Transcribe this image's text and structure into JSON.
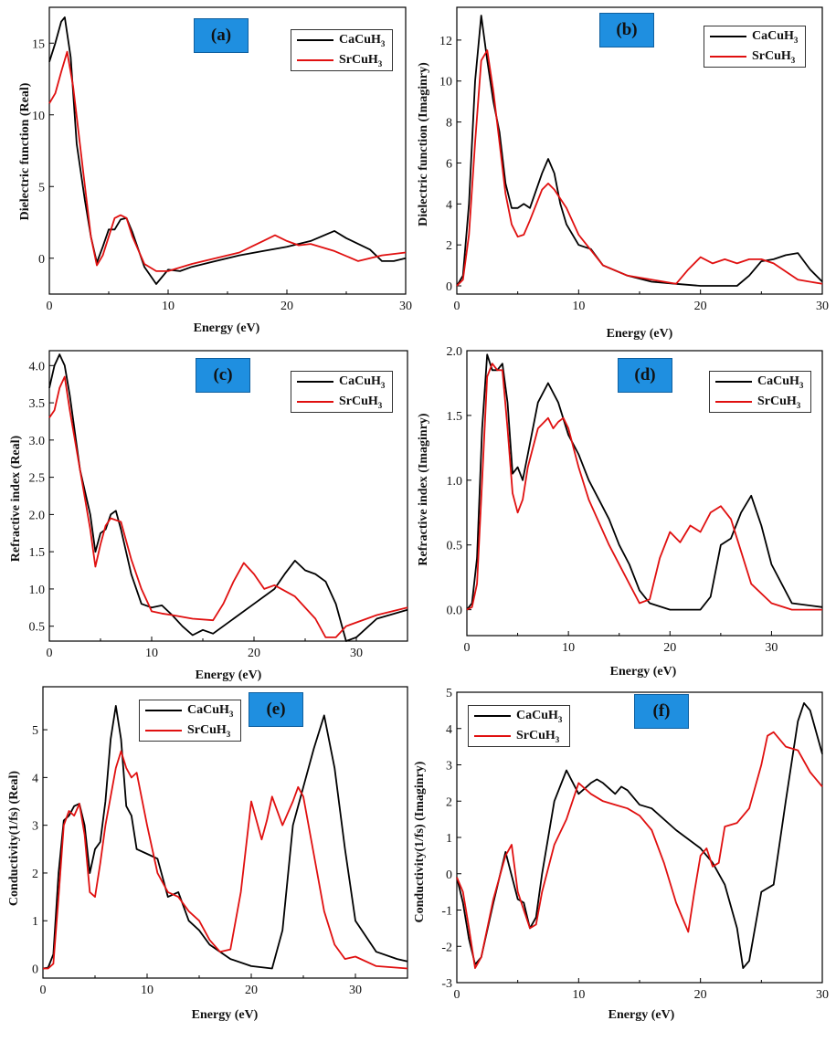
{
  "colors": {
    "CaCuH3": "#000000",
    "SrCuH3": "#e01010",
    "label_bg": "#1f8fe0"
  },
  "legend": {
    "ca": {
      "base": "CaCuH",
      "sub": "3"
    },
    "sr": {
      "base": "SrCuH",
      "sub": "3"
    }
  },
  "chart_data": [
    {
      "id": "a",
      "type": "line",
      "panel_label": "(a)",
      "title": "",
      "xlabel": "Energy (eV)",
      "ylabel": "Dielectric function (Real)",
      "xlim": [
        0,
        30
      ],
      "ylim": [
        -2.5,
        17.5
      ],
      "xticks": [
        0,
        10,
        20,
        30
      ],
      "yticks": [
        0,
        5,
        10,
        15
      ],
      "series": [
        {
          "name": "CaCuH3",
          "x": [
            0,
            0.5,
            1,
            1.3,
            1.8,
            2.3,
            3,
            3.5,
            4,
            4.5,
            5,
            5.5,
            6,
            6.5,
            7,
            8,
            9,
            10,
            11,
            12,
            14,
            16,
            18,
            20,
            22,
            24,
            25,
            27,
            28,
            29,
            30
          ],
          "y": [
            13.7,
            15,
            16.5,
            16.8,
            14,
            8,
            4,
            1.5,
            -0.3,
            0.8,
            2,
            2,
            2.7,
            2.8,
            1.8,
            -0.6,
            -1.8,
            -0.8,
            -0.9,
            -0.6,
            -0.2,
            0.2,
            0.5,
            0.8,
            1.2,
            1.9,
            1.4,
            0.6,
            -0.2,
            -0.2,
            0
          ]
        },
        {
          "name": "SrCuH3",
          "x": [
            0,
            0.5,
            1,
            1.5,
            2,
            3,
            3.5,
            4,
            4.5,
            5,
            5.5,
            6,
            6.5,
            7,
            8,
            9,
            10,
            12,
            14,
            16,
            17,
            18,
            19,
            20,
            21,
            22,
            24,
            26,
            28,
            30
          ],
          "y": [
            10.8,
            11.5,
            13,
            14.4,
            12,
            5,
            1.5,
            -0.5,
            0.2,
            1.5,
            2.8,
            3,
            2.8,
            1.5,
            -0.4,
            -0.9,
            -0.9,
            -0.4,
            0,
            0.4,
            0.8,
            1.2,
            1.6,
            1.2,
            0.9,
            1,
            0.5,
            -0.2,
            0.2,
            0.4
          ]
        }
      ]
    },
    {
      "id": "b",
      "type": "line",
      "panel_label": "(b)",
      "title": "",
      "xlabel": "Energy (eV)",
      "ylabel": "Dielectric function (Imaginry)",
      "xlim": [
        0,
        30
      ],
      "ylim": [
        -0.4,
        13.6
      ],
      "xticks": [
        0,
        10,
        20,
        30
      ],
      "yticks": [
        0,
        2,
        4,
        6,
        8,
        10,
        12
      ],
      "series": [
        {
          "name": "CaCuH3",
          "x": [
            0,
            0.5,
            1,
            1.5,
            2,
            2.5,
            3,
            3.5,
            4,
            4.5,
            5,
            5.5,
            6,
            7,
            7.5,
            8,
            8.5,
            9,
            10,
            11,
            12,
            14,
            16,
            18,
            20,
            22,
            23,
            24,
            25,
            26,
            27,
            28,
            29,
            30
          ],
          "y": [
            0,
            0.5,
            4,
            10,
            13.2,
            11,
            9,
            7.5,
            5,
            3.8,
            3.8,
            4,
            3.8,
            5.5,
            6.2,
            5.5,
            4,
            3,
            2,
            1.8,
            1,
            0.5,
            0.2,
            0.1,
            0,
            0,
            0,
            0.5,
            1.2,
            1.3,
            1.5,
            1.6,
            0.8,
            0.2
          ]
        },
        {
          "name": "SrCuH3",
          "x": [
            0,
            0.5,
            1,
            1.5,
            2,
            2.5,
            3,
            3.5,
            4,
            4.5,
            5,
            5.5,
            6,
            7,
            7.5,
            8,
            9,
            10,
            12,
            14,
            16,
            18,
            19,
            20,
            21,
            22,
            23,
            24,
            25,
            26,
            28,
            30
          ],
          "y": [
            0,
            0.3,
            2.5,
            7,
            11,
            11.5,
            9.5,
            7,
            4.5,
            3,
            2.4,
            2.5,
            3.2,
            4.7,
            5,
            4.7,
            3.8,
            2.5,
            1,
            0.5,
            0.3,
            0.1,
            0.8,
            1.4,
            1.1,
            1.3,
            1.1,
            1.3,
            1.3,
            1.1,
            0.3,
            0.1
          ]
        }
      ]
    },
    {
      "id": "c",
      "type": "line",
      "panel_label": "(c)",
      "title": "",
      "xlabel": "Energy (eV)",
      "ylabel": "Refractive index (Real)",
      "xlim": [
        0,
        35
      ],
      "ylim": [
        0.3,
        4.2
      ],
      "xticks": [
        0,
        10,
        20,
        30
      ],
      "yticks": [
        0.5,
        1.0,
        1.5,
        2.0,
        2.5,
        3.0,
        3.5,
        4.0
      ],
      "series": [
        {
          "name": "CaCuH3",
          "x": [
            0,
            0.5,
            1,
            1.5,
            2,
            3,
            4,
            4.5,
            5,
            5.5,
            6,
            6.5,
            7,
            8,
            9,
            10,
            11,
            12,
            13,
            14,
            15,
            16,
            18,
            20,
            22,
            23,
            24,
            25,
            26,
            27,
            28,
            29,
            30,
            32,
            35
          ],
          "y": [
            3.7,
            4,
            4.15,
            4,
            3.6,
            2.6,
            2,
            1.5,
            1.75,
            1.8,
            2,
            2.05,
            1.8,
            1.2,
            0.8,
            0.75,
            0.78,
            0.65,
            0.5,
            0.38,
            0.45,
            0.4,
            0.6,
            0.8,
            1,
            1.2,
            1.38,
            1.25,
            1.2,
            1.1,
            0.8,
            0.3,
            0.35,
            0.6,
            0.72
          ]
        },
        {
          "name": "SrCuH3",
          "x": [
            0,
            0.5,
            1,
            1.5,
            2,
            3,
            4,
            4.5,
            5,
            5.5,
            6,
            7,
            8,
            9,
            10,
            11,
            12,
            14,
            16,
            17,
            18,
            19,
            20,
            21,
            22,
            24,
            26,
            27,
            28,
            29,
            30,
            32,
            35
          ],
          "y": [
            3.3,
            3.4,
            3.7,
            3.85,
            3.4,
            2.6,
            1.8,
            1.3,
            1.6,
            1.85,
            1.95,
            1.9,
            1.4,
            1,
            0.7,
            0.67,
            0.65,
            0.6,
            0.58,
            0.8,
            1.1,
            1.35,
            1.2,
            1.0,
            1.05,
            0.9,
            0.6,
            0.35,
            0.35,
            0.5,
            0.55,
            0.65,
            0.75
          ]
        }
      ]
    },
    {
      "id": "d",
      "type": "line",
      "panel_label": "(d)",
      "title": "",
      "xlabel": "Energy (eV)",
      "ylabel": "Refractive index (Imaginry)",
      "xlim": [
        0,
        35
      ],
      "ylim": [
        -0.2,
        2.0
      ],
      "xticks": [
        0,
        10,
        20,
        30
      ],
      "yticks": [
        0.0,
        0.5,
        1.0,
        1.5,
        2.0
      ],
      "series": [
        {
          "name": "CaCuH3",
          "x": [
            0,
            0.5,
            1,
            1.5,
            2,
            2.5,
            3,
            3.5,
            4,
            4.5,
            5,
            5.5,
            6,
            7,
            8,
            9,
            10,
            11,
            12,
            13,
            14,
            15,
            16,
            17,
            18,
            20,
            22,
            23,
            24,
            25,
            26,
            27,
            28,
            29,
            30,
            32,
            35
          ],
          "y": [
            0,
            0.05,
            0.4,
            1.4,
            1.97,
            1.85,
            1.85,
            1.9,
            1.6,
            1.05,
            1.1,
            1.0,
            1.2,
            1.6,
            1.75,
            1.6,
            1.35,
            1.2,
            1.0,
            0.85,
            0.7,
            0.5,
            0.35,
            0.15,
            0.05,
            0,
            0,
            0,
            0.1,
            0.5,
            0.55,
            0.75,
            0.88,
            0.65,
            0.35,
            0.05,
            0.02
          ]
        },
        {
          "name": "SrCuH3",
          "x": [
            0,
            0.5,
            1,
            1.5,
            2,
            2.5,
            3,
            3.5,
            4,
            4.5,
            5,
            5.5,
            6,
            7,
            8,
            8.5,
            9,
            9.5,
            10,
            11,
            12,
            14,
            16,
            17,
            18,
            19,
            20,
            21,
            22,
            23,
            24,
            25,
            26,
            27,
            28,
            30,
            32,
            35
          ],
          "y": [
            0,
            0.02,
            0.2,
            1,
            1.8,
            1.9,
            1.85,
            1.85,
            1.4,
            0.9,
            0.75,
            0.85,
            1.1,
            1.4,
            1.48,
            1.4,
            1.45,
            1.48,
            1.4,
            1.1,
            0.85,
            0.5,
            0.2,
            0.05,
            0.08,
            0.4,
            0.6,
            0.52,
            0.65,
            0.6,
            0.75,
            0.8,
            0.7,
            0.45,
            0.2,
            0.05,
            0,
            0
          ]
        }
      ]
    },
    {
      "id": "e",
      "type": "line",
      "panel_label": "(e)",
      "title": "",
      "xlabel": "Energy (eV)",
      "ylabel": "Conductivity(1/fs) (Real)",
      "xlim": [
        0,
        35
      ],
      "ylim": [
        -0.2,
        5.9
      ],
      "xticks": [
        0,
        10,
        20,
        30
      ],
      "yticks": [
        0,
        1,
        2,
        3,
        4,
        5
      ],
      "series": [
        {
          "name": "CaCuH3",
          "x": [
            0,
            0.5,
            1,
            1.5,
            2,
            2.5,
            3,
            3.5,
            4,
            4.5,
            5,
            5.5,
            6,
            6.5,
            7,
            7.5,
            8,
            8.5,
            9,
            10,
            11,
            12,
            13,
            14,
            15,
            16,
            18,
            20,
            22,
            23,
            24,
            25,
            26,
            27,
            28,
            29,
            30,
            32,
            34,
            35
          ],
          "y": [
            0,
            0.02,
            0.3,
            2,
            3.1,
            3.2,
            3.4,
            3.45,
            3,
            2,
            2.5,
            2.65,
            3.5,
            4.8,
            5.5,
            4.8,
            3.4,
            3.2,
            2.5,
            2.4,
            2.3,
            1.5,
            1.6,
            1,
            0.8,
            0.5,
            0.2,
            0.05,
            0,
            0.8,
            3,
            3.8,
            4.6,
            5.3,
            4.2,
            2.5,
            1,
            0.35,
            0.2,
            0.15
          ]
        },
        {
          "name": "SrCuH3",
          "x": [
            0,
            0.5,
            1,
            1.5,
            2,
            2.5,
            3,
            3.5,
            4,
            4.5,
            5,
            5.5,
            6,
            7,
            7.5,
            8,
            8.5,
            9,
            10,
            11,
            12,
            13,
            14,
            15,
            16,
            17,
            18,
            19,
            20,
            21,
            21.5,
            22,
            23,
            24,
            24.5,
            25,
            26,
            27,
            28,
            29,
            30,
            32,
            35
          ],
          "y": [
            0,
            0,
            0.1,
            1.5,
            3,
            3.3,
            3.2,
            3.45,
            2.8,
            1.6,
            1.5,
            2.2,
            3,
            4.2,
            4.55,
            4.2,
            4,
            4.1,
            3,
            2,
            1.6,
            1.5,
            1.2,
            1,
            0.6,
            0.35,
            0.4,
            1.6,
            3.5,
            2.7,
            3.1,
            3.6,
            3,
            3.5,
            3.8,
            3.6,
            2.4,
            1.2,
            0.5,
            0.2,
            0.25,
            0.05,
            0
          ]
        }
      ]
    },
    {
      "id": "f",
      "type": "line",
      "panel_label": "(f)",
      "title": "",
      "xlabel": "Energy (eV)",
      "ylabel": "Conductivity(1/fs) (Imaginry)",
      "xlim": [
        0,
        30
      ],
      "ylim": [
        -3,
        5
      ],
      "xticks": [
        0,
        10,
        20,
        30
      ],
      "yticks": [
        -3,
        -2,
        -1,
        0,
        1,
        2,
        3,
        4,
        5
      ],
      "series": [
        {
          "name": "CaCuH3",
          "x": [
            0,
            0.5,
            1,
            1.5,
            2,
            3,
            4,
            5,
            5.5,
            6,
            6.5,
            7,
            8,
            9,
            10,
            11,
            11.5,
            12,
            13,
            13.5,
            14,
            15,
            16,
            18,
            20,
            21,
            22,
            23,
            23.5,
            24,
            25,
            26,
            27,
            28,
            28.5,
            29,
            30
          ],
          "y": [
            -0.1,
            -0.8,
            -1.8,
            -2.5,
            -2.3,
            -0.8,
            0.6,
            -0.7,
            -0.8,
            -1.5,
            -1.2,
            0,
            2,
            2.85,
            2.2,
            2.5,
            2.6,
            2.5,
            2.2,
            2.4,
            2.3,
            1.9,
            1.8,
            1.2,
            0.7,
            0.3,
            -0.3,
            -1.5,
            -2.6,
            -2.4,
            -0.5,
            -0.3,
            2,
            4.2,
            4.7,
            4.5,
            3.3
          ]
        },
        {
          "name": "SrCuH3",
          "x": [
            0,
            0.5,
            1,
            1.5,
            2,
            3,
            4,
            4.5,
            5,
            5.5,
            6,
            6.5,
            7,
            8,
            9,
            10,
            11,
            12,
            13,
            14,
            15,
            16,
            17,
            18,
            19,
            19.5,
            20,
            20.5,
            21,
            21.5,
            22,
            23,
            24,
            25,
            25.5,
            26,
            27,
            28,
            29,
            30
          ],
          "y": [
            -0.1,
            -0.5,
            -1.5,
            -2.6,
            -2.3,
            -0.7,
            0.5,
            0.8,
            -0.5,
            -1,
            -1.5,
            -1.4,
            -0.5,
            0.8,
            1.5,
            2.5,
            2.2,
            2,
            1.9,
            1.8,
            1.6,
            1.2,
            0.3,
            -0.8,
            -1.6,
            -0.5,
            0.5,
            0.7,
            0.2,
            0.3,
            1.3,
            1.4,
            1.8,
            3,
            3.8,
            3.9,
            3.5,
            3.4,
            2.8,
            2.4
          ]
        }
      ]
    }
  ]
}
